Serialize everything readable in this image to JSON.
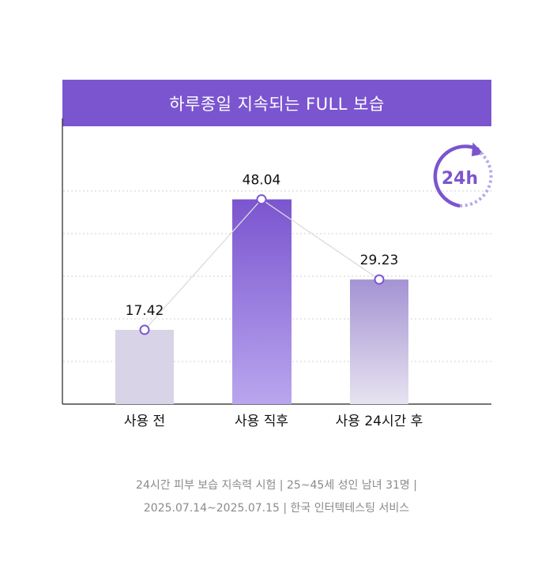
{
  "chart_data": {
    "type": "bar",
    "title": "하루종일 지속되는 FULL 보습",
    "categories": [
      "사용 전",
      "사용 직후",
      "사용 24시간 후"
    ],
    "values": [
      17.42,
      48.04,
      29.23
    ],
    "value_labels": [
      "17.42",
      "48.04",
      "29.23"
    ],
    "ylim": [
      0,
      60
    ],
    "grid": true,
    "colors": {
      "header": "#7b55cf",
      "bar_before": "#d9d3e8",
      "bar_after_top": "#7b55cf",
      "bar_after_bottom": "#b9a6ee",
      "bar_24h_top": "#a493d3",
      "bar_24h_bottom": "#e7e3f0",
      "badge": "#7b55cf"
    }
  },
  "badge": {
    "label": "24h",
    "icon": "circular-arrow-icon"
  },
  "footnote": {
    "line1": "24시간 피부 보습 지속력 시험 | 25~45세 성인 남녀 31명 |",
    "line2": "2025.07.14~2025.07.15 | 한국 인터텍테스팅 서비스"
  }
}
